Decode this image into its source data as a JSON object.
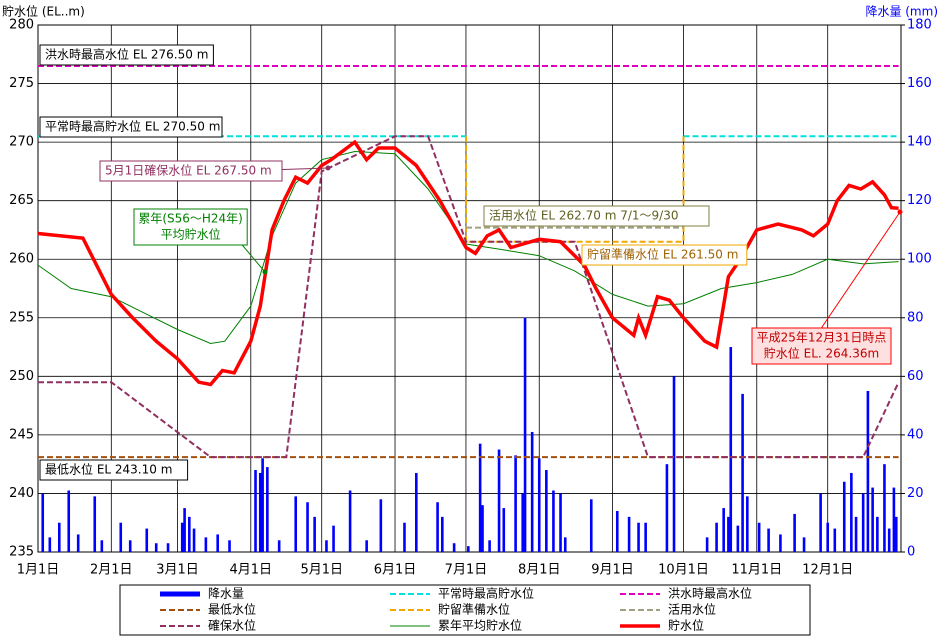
{
  "chart_data": {
    "type": "line",
    "y_label": "貯水位 (EL..m)",
    "y2_label": "降水量 (mm)",
    "xlim": [
      1,
      366
    ],
    "ylim": [
      235,
      280
    ],
    "y2lim": [
      0,
      180
    ],
    "xticks": [
      {
        "value": 1,
        "label": "1月1日"
      },
      {
        "value": 32,
        "label": "2月1日"
      },
      {
        "value": 60,
        "label": "3月1日"
      },
      {
        "value": 91,
        "label": "4月1日"
      },
      {
        "value": 121,
        "label": "5月1日"
      },
      {
        "value": 152,
        "label": "6月1日"
      },
      {
        "value": 182,
        "label": "7月1日"
      },
      {
        "value": 213,
        "label": "8月1日"
      },
      {
        "value": 244,
        "label": "9月1日"
      },
      {
        "value": 274,
        "label": "10月1日"
      },
      {
        "value": 305,
        "label": "11月1日"
      },
      {
        "value": 335,
        "label": "12月1日"
      }
    ],
    "yticks": [
      235,
      240,
      245,
      250,
      255,
      260,
      265,
      270,
      275,
      280
    ],
    "y2ticks": [
      0,
      20,
      40,
      60,
      80,
      100,
      120,
      140,
      160,
      180
    ],
    "grid": true,
    "series": [
      {
        "name": "降水量",
        "type": "bar",
        "axis": "y2",
        "color": "#0000ff",
        "x": [
          3,
          6,
          10,
          14,
          18,
          25,
          28,
          36,
          40,
          47,
          51,
          56,
          62,
          63,
          65,
          67,
          72,
          77,
          82,
          93,
          95,
          96,
          98,
          103,
          110,
          115,
          118,
          123,
          126,
          133,
          140,
          146,
          156,
          161,
          170,
          172,
          177,
          183,
          188,
          189,
          192,
          196,
          198,
          203,
          206,
          207,
          210,
          213,
          216,
          219,
          222,
          224,
          235,
          246,
          251,
          255,
          258,
          267,
          270,
          284,
          288,
          291,
          293,
          294,
          297,
          299,
          301,
          306,
          310,
          315,
          321,
          325,
          332,
          335,
          338,
          342,
          345,
          347,
          350,
          352,
          354,
          356,
          359,
          361,
          363,
          364
        ],
        "values": [
          20,
          5,
          10,
          21,
          6,
          19,
          4,
          10,
          4,
          8,
          3,
          3,
          10,
          15,
          12,
          8,
          5,
          6,
          4,
          28,
          27,
          32,
          29,
          4,
          19,
          17,
          12,
          4,
          9,
          21,
          4,
          18,
          10,
          27,
          17,
          12,
          3,
          2,
          37,
          16,
          4,
          35,
          15,
          33,
          20,
          80,
          41,
          32,
          28,
          21,
          20,
          5,
          18,
          14,
          12,
          10,
          10,
          30,
          60,
          5,
          10,
          15,
          12,
          70,
          9,
          54,
          19,
          10,
          8,
          6,
          13,
          5,
          20,
          10,
          8,
          24,
          27,
          12,
          20,
          55,
          22,
          12,
          30,
          8,
          22,
          12
        ]
      },
      {
        "name": "平常時最高貯水位",
        "color": "#00e0e0",
        "line_style": "dashed",
        "x": [
          1,
          182,
          228,
          274,
          365
        ],
        "values": [
          270.5,
          270.5,
          null,
          270.5,
          270.5
        ]
      },
      {
        "name": "洪水時最高水位",
        "color": "#e000c0",
        "line_style": "dashed",
        "x": [
          1,
          365
        ],
        "values": [
          276.5,
          276.5
        ]
      },
      {
        "name": "最低水位",
        "color": "#a05010",
        "line_style": "dashed",
        "x": [
          1,
          365
        ],
        "values": [
          243.1,
          243.1
        ]
      },
      {
        "name": "貯留準備水位",
        "color": "#f0a800",
        "line_style": "dashed",
        "x": [
          182,
          182,
          274,
          274
        ],
        "values": [
          270.5,
          261.5,
          261.5,
          270.5
        ]
      },
      {
        "name": "活用水位",
        "color": "#a0a080",
        "line_style": "dashed",
        "x": [
          182,
          274
        ],
        "values": [
          262.7,
          262.7
        ]
      },
      {
        "name": "確保水位",
        "color": "#903060",
        "line_style": "dashed",
        "x": [
          1,
          32,
          74,
          106,
          121,
          152,
          166,
          182,
          228,
          259,
          350,
          365
        ],
        "values": [
          249.5,
          249.5,
          243.1,
          243.1,
          267.5,
          270.5,
          270.5,
          261.5,
          261.5,
          243.1,
          243.1,
          249.5
        ]
      },
      {
        "name": "累年平均貯水位",
        "color": "#008000",
        "line_style": "solid",
        "x": [
          1,
          15,
          32,
          45,
          60,
          74,
          80,
          91,
          100,
          110,
          121,
          135,
          152,
          166,
          182,
          198,
          213,
          228,
          244,
          259,
          274,
          290,
          305,
          320,
          335,
          350,
          365
        ],
        "values": [
          259.5,
          257.5,
          256.8,
          255.5,
          254,
          252.8,
          253,
          256,
          262,
          266.5,
          268.5,
          269.2,
          269,
          266,
          261.3,
          260.8,
          260.3,
          259,
          257,
          256,
          256.2,
          257.5,
          258,
          258.7,
          260,
          259.6,
          259.8
        ]
      },
      {
        "name": "貯水位",
        "color": "#ff0000",
        "line_style": "thick",
        "x": [
          1,
          20,
          32,
          41,
          51,
          60,
          69,
          74,
          79,
          84,
          91,
          95,
          100,
          105,
          110,
          115,
          121,
          125,
          135,
          140,
          145,
          152,
          161,
          171,
          182,
          186,
          191,
          196,
          201,
          213,
          222,
          232,
          237,
          244,
          253,
          255,
          258,
          263,
          268,
          274,
          283,
          288,
          293,
          298,
          305,
          314,
          324,
          329,
          335,
          339,
          344,
          349,
          354,
          359,
          362,
          365
        ],
        "values": [
          262.2,
          261.8,
          257,
          255,
          253,
          251.5,
          249.5,
          249.3,
          250.5,
          250.3,
          253,
          256,
          262.5,
          265,
          267,
          266.5,
          268,
          268.5,
          270,
          268.5,
          269.5,
          269.5,
          268,
          265,
          261,
          260.5,
          262,
          262.5,
          261,
          261.7,
          261.5,
          259.5,
          257.5,
          255,
          253.5,
          255,
          253.5,
          256.8,
          256.5,
          255,
          253,
          252.5,
          258.5,
          260,
          262.5,
          263,
          262.5,
          262,
          263,
          265,
          266.3,
          266,
          266.6,
          265.5,
          264.4,
          264.36
        ]
      }
    ],
    "annotations": [
      {
        "lines": [
          "洪水時最高水位 EL 276.50 m"
        ]
      },
      {
        "lines": [
          "平常時最高貯水位 EL 270.50 m"
        ]
      },
      {
        "lines": [
          "5月1日確保水位 EL 267.50 m"
        ]
      },
      {
        "lines": [
          "累年(S56～H24年)",
          "平均貯水位"
        ]
      },
      {
        "lines": [
          "活用水位 EL 262.70 m 7/1～9/30"
        ]
      },
      {
        "lines": [
          "貯留準備水位 EL 261.50 m"
        ]
      },
      {
        "lines": [
          "平成25年12月31日時点",
          "貯水位 EL. 264.36m"
        ]
      },
      {
        "lines": [
          "最低水位 EL 243.10 m"
        ]
      }
    ]
  }
}
